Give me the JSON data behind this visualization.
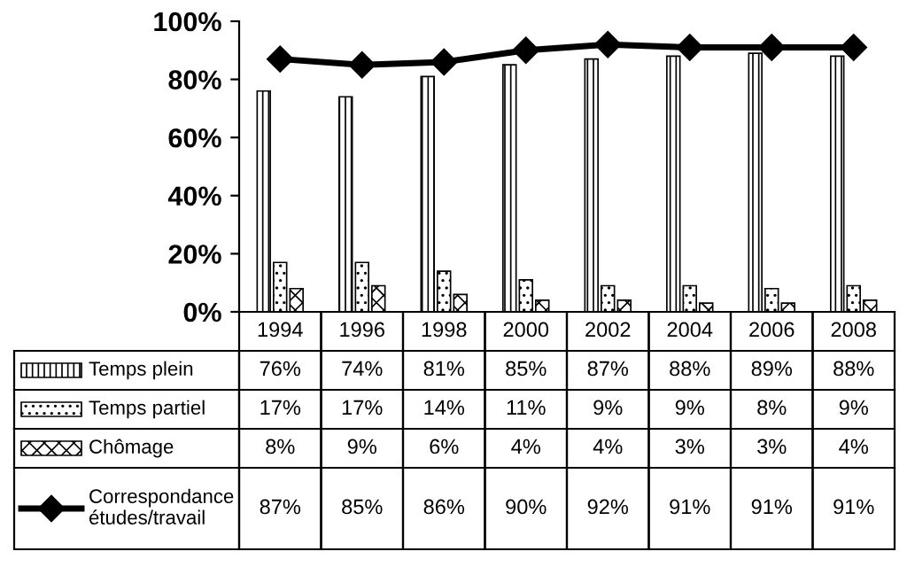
{
  "chart_data": {
    "type": "bar",
    "categories": [
      "1994",
      "1996",
      "1998",
      "2000",
      "2002",
      "2004",
      "2006",
      "2008"
    ],
    "series": [
      {
        "name": "Temps plein",
        "color": "#000000",
        "values": [
          76,
          74,
          81,
          85,
          87,
          88,
          89,
          88
        ],
        "value_labels": [
          "76%",
          "74%",
          "81%",
          "85%",
          "87%",
          "88%",
          "89%",
          "88%"
        ]
      },
      {
        "name": "Temps partiel",
        "color": "#000000",
        "values": [
          17,
          17,
          14,
          11,
          9,
          9,
          8,
          9
        ],
        "value_labels": [
          "17%",
          "17%",
          "14%",
          "11%",
          "9%",
          "9%",
          "8%",
          "9%"
        ]
      },
      {
        "name": "Chômage",
        "color": "#000000",
        "values": [
          8,
          9,
          6,
          4,
          4,
          3,
          3,
          4
        ],
        "value_labels": [
          "8%",
          "9%",
          "6%",
          "4%",
          "4%",
          "3%",
          "3%",
          "4%"
        ]
      },
      {
        "name": "Correspondance\nétudes/travail",
        "type": "line",
        "color": "#000000",
        "marker": "diamond",
        "values": [
          87,
          85,
          86,
          90,
          92,
          91,
          91,
          91
        ],
        "value_labels": [
          "87%",
          "85%",
          "86%",
          "90%",
          "92%",
          "91%",
          "91%",
          "91%"
        ]
      }
    ],
    "ylim": [
      0,
      100
    ],
    "yticks": [
      {
        "value": 0,
        "label": "0%"
      },
      {
        "value": 20,
        "label": "20%"
      },
      {
        "value": 40,
        "label": "40%"
      },
      {
        "value": 60,
        "label": "60%"
      },
      {
        "value": 80,
        "label": "80%"
      },
      {
        "value": 100,
        "label": "100%"
      }
    ],
    "legend": "bottom",
    "grid": false
  }
}
